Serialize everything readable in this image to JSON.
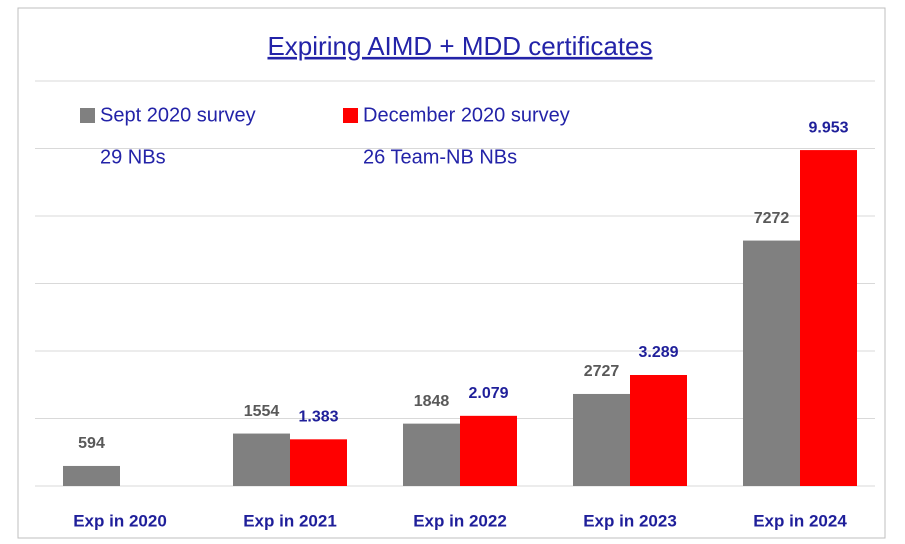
{
  "chart_data": {
    "type": "bar",
    "title": "Expiring AIMD + MDD certificates",
    "categories": [
      "Exp in 2020",
      "Exp in 2021",
      "Exp in 2022",
      "Exp in 2023",
      "Exp in 2024"
    ],
    "series": [
      {
        "name": "Sept 2020 survey",
        "legend_note": "29 NBs",
        "color": "#808080",
        "label_color": "#595959",
        "values": [
          594,
          1554,
          1848,
          2727,
          7272
        ]
      },
      {
        "name": "December 2020 survey",
        "legend_note": "26 Team-NB NBs",
        "color": "#ff0000",
        "label_color": "#1f1f9a",
        "values": [
          null,
          1383,
          2079,
          3289,
          9953
        ],
        "value_labels": [
          null,
          "1.383",
          "2.079",
          "3.289",
          "9.953"
        ]
      }
    ],
    "ylim": [
      0,
      12000
    ],
    "yticks": [
      0,
      2000,
      4000,
      6000,
      8000,
      10000,
      12000
    ],
    "grid": true,
    "legend": "top-left"
  }
}
